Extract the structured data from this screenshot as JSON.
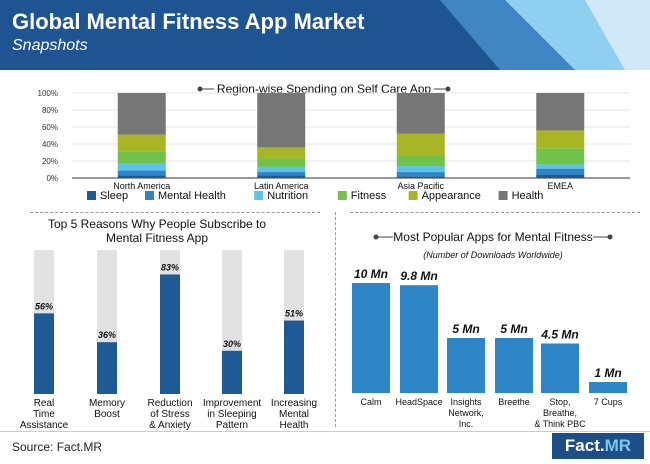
{
  "header": {
    "title": "Global Mental Fitness App Market",
    "subtitle": "Snapshots",
    "colors": {
      "dark": "#1e5491",
      "mid": "#3f86c3",
      "light": "#8fd0f0",
      "pale": "#cfe9f8"
    }
  },
  "chart_data": [
    {
      "type": "bar",
      "stacked": true,
      "title": "Region-wise Spending on Self Care App",
      "categories": [
        "North America",
        "Latin America",
        "Asia Pacific",
        "EMEA"
      ],
      "y_ticks": [
        "0%",
        "20%",
        "40%",
        "60%",
        "80%",
        "100%"
      ],
      "ylim": [
        0,
        100
      ],
      "legend_position": "bottom",
      "series": [
        {
          "name": "Sleep",
          "color": "#1f5a94",
          "values": [
            3,
            3,
            2,
            4
          ]
        },
        {
          "name": "Mental Health",
          "color": "#2e86c8",
          "values": [
            6,
            4,
            5,
            7
          ]
        },
        {
          "name": "Nutrition",
          "color": "#5bc3ea",
          "values": [
            8,
            6,
            7,
            5
          ]
        },
        {
          "name": "Fitness",
          "color": "#70c24a",
          "values": [
            14,
            10,
            13,
            19
          ]
        },
        {
          "name": "Appearance",
          "color": "#a8b626",
          "values": [
            20,
            13,
            25,
            21
          ]
        },
        {
          "name": "Health",
          "color": "#767676",
          "values": [
            49,
            64,
            48,
            44
          ]
        }
      ]
    },
    {
      "type": "bar",
      "title": "Top 5 Reasons Why People Subscribe to Mental Fitness App",
      "categories": [
        "Real Time Assistance",
        "Memory Boost",
        "Reduction of Stress & Anxiety",
        "Improvement in Sleeping Pattern",
        "Increasing Mental Health"
      ],
      "category_lines": [
        [
          "Real",
          "Time",
          "Assistance"
        ],
        [
          "Memory",
          "Boost"
        ],
        [
          "Reduction",
          "of Stress",
          "& Anxiety"
        ],
        [
          "Improvement",
          "in Sleeping",
          "Pattern"
        ],
        [
          "Increasing",
          "Mental",
          "Health"
        ]
      ],
      "values": [
        56,
        36,
        83,
        30,
        51
      ],
      "labels": [
        "56%",
        "36%",
        "83%",
        "30%",
        "51%"
      ],
      "ylim": [
        0,
        100
      ],
      "bar_color": "#1f5a94",
      "track_color": "#e2e2e2"
    },
    {
      "type": "bar",
      "title": "Most Popular Apps for Mental Fitness",
      "subtitle": "(Number of Downloads Worldwide)",
      "categories": [
        "Calm",
        "HeadSpace",
        "Insights Network, Inc.",
        "Breethe",
        "Stop, Breathe, & Think PBC",
        "7 Cups"
      ],
      "category_lines": [
        [
          "Calm"
        ],
        [
          "HeadSpace"
        ],
        [
          "Insights",
          "Network,",
          "Inc."
        ],
        [
          "Breethe"
        ],
        [
          "Stop,",
          "Breathe,",
          "& Think PBC"
        ],
        [
          "7 Cups"
        ]
      ],
      "values": [
        10,
        9.8,
        5,
        5,
        4.5,
        1
      ],
      "labels": [
        "10 Mn",
        "9.8 Mn",
        "5 Mn",
        "5 Mn",
        "4.5 Mn",
        "1 Mn"
      ],
      "unit": "Mn",
      "bar_color": "#2e86c8"
    }
  ],
  "footer": {
    "source": "Source: Fact.MR",
    "logo_left": "Fact.",
    "logo_right": "MR"
  }
}
